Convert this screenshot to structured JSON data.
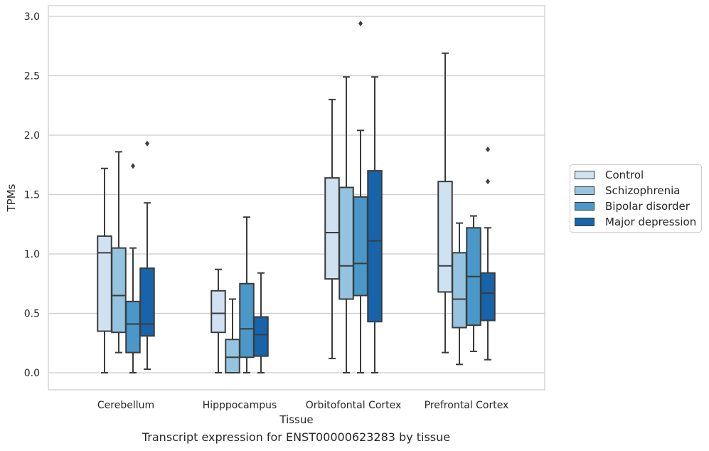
{
  "caption": "Transcript expression for ENST00000623283 by tissue",
  "chart_data": {
    "type": "box",
    "xlabel": "Tissue",
    "ylabel": "TPMs",
    "ylim": [
      -0.14,
      3.08
    ],
    "yticks": [
      0.0,
      0.5,
      1.0,
      1.5,
      2.0,
      2.5,
      3.0
    ],
    "ytick_labels": [
      "0.0",
      "0.5",
      "1.0",
      "1.5",
      "2.0",
      "2.5",
      "3.0"
    ],
    "grid": true,
    "legend_position": "right",
    "categories": [
      "Cerebellum",
      "Hipppocampus",
      "Orbitofontal Cortex",
      "Prefrontal Cortex"
    ],
    "series": [
      {
        "name": "Control",
        "color": "#d0e1f2",
        "boxes": [
          {
            "whisker_low": 0.0,
            "q1": 0.35,
            "median": 1.01,
            "q3": 1.15,
            "whisker_high": 1.72,
            "outliers": []
          },
          {
            "whisker_low": 0.0,
            "q1": 0.34,
            "median": 0.5,
            "q3": 0.69,
            "whisker_high": 0.87,
            "outliers": []
          },
          {
            "whisker_low": 0.12,
            "q1": 0.79,
            "median": 1.18,
            "q3": 1.64,
            "whisker_high": 2.3,
            "outliers": []
          },
          {
            "whisker_low": 0.17,
            "q1": 0.68,
            "median": 0.9,
            "q3": 1.61,
            "whisker_high": 2.69,
            "outliers": []
          }
        ]
      },
      {
        "name": "Schizophrenia",
        "color": "#94c4df",
        "boxes": [
          {
            "whisker_low": 0.17,
            "q1": 0.34,
            "median": 0.65,
            "q3": 1.05,
            "whisker_high": 1.86,
            "outliers": []
          },
          {
            "whisker_low": 0.0,
            "q1": 0.0,
            "median": 0.13,
            "q3": 0.28,
            "whisker_high": 0.62,
            "outliers": []
          },
          {
            "whisker_low": 0.0,
            "q1": 0.62,
            "median": 0.9,
            "q3": 1.56,
            "whisker_high": 2.49,
            "outliers": []
          },
          {
            "whisker_low": 0.07,
            "q1": 0.38,
            "median": 0.62,
            "q3": 1.01,
            "whisker_high": 1.26,
            "outliers": []
          }
        ]
      },
      {
        "name": "Bipolar disorder",
        "color": "#4a98c9",
        "boxes": [
          {
            "whisker_low": 0.0,
            "q1": 0.17,
            "median": 0.41,
            "q3": 0.6,
            "whisker_high": 1.05,
            "outliers": [
              1.74
            ]
          },
          {
            "whisker_low": 0.0,
            "q1": 0.13,
            "median": 0.37,
            "q3": 0.75,
            "whisker_high": 1.31,
            "outliers": []
          },
          {
            "whisker_low": 0.0,
            "q1": 0.65,
            "median": 0.92,
            "q3": 1.48,
            "whisker_high": 2.04,
            "outliers": [
              2.94
            ]
          },
          {
            "whisker_low": 0.18,
            "q1": 0.4,
            "median": 0.81,
            "q3": 1.22,
            "whisker_high": 1.32,
            "outliers": []
          }
        ]
      },
      {
        "name": "Major depression",
        "color": "#1764ab",
        "boxes": [
          {
            "whisker_low": 0.03,
            "q1": 0.31,
            "median": 0.41,
            "q3": 0.88,
            "whisker_high": 1.43,
            "outliers": [
              1.93
            ]
          },
          {
            "whisker_low": 0.0,
            "q1": 0.14,
            "median": 0.32,
            "q3": 0.47,
            "whisker_high": 0.84,
            "outliers": []
          },
          {
            "whisker_low": 0.0,
            "q1": 0.43,
            "median": 1.11,
            "q3": 1.7,
            "whisker_high": 2.49,
            "outliers": []
          },
          {
            "whisker_low": 0.11,
            "q1": 0.44,
            "median": 0.67,
            "q3": 0.84,
            "whisker_high": 1.22,
            "outliers": [
              1.88,
              1.61
            ]
          }
        ]
      }
    ]
  }
}
